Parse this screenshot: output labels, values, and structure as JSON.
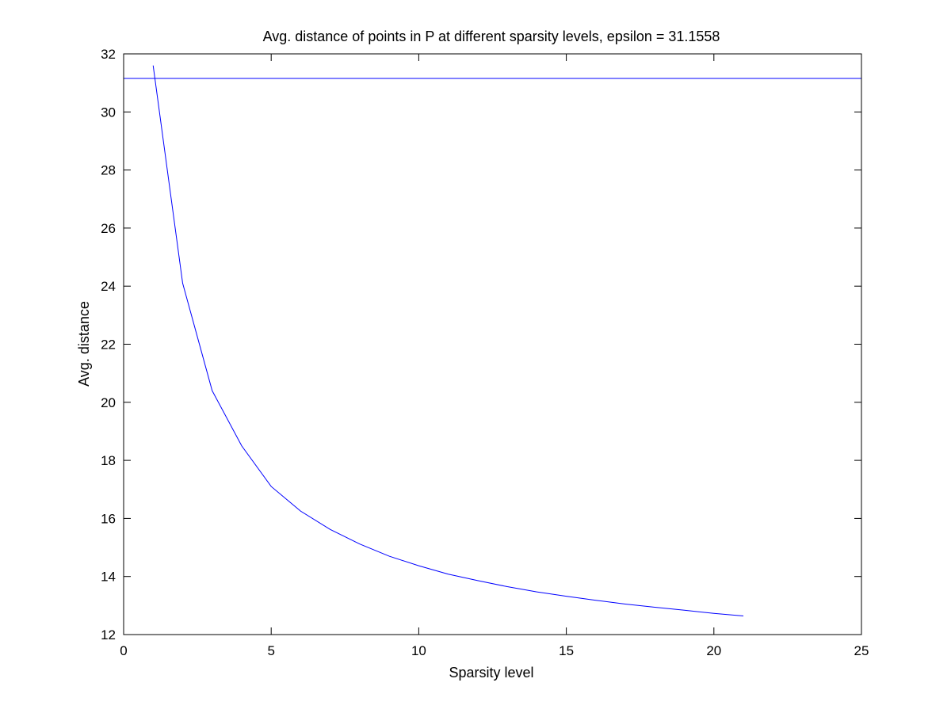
{
  "chart_data": {
    "type": "line",
    "title": "Avg. distance of points in P at different sparsity levels, epsilon = 31.1558",
    "xlabel": "Sparsity level",
    "ylabel": "Avg. distance",
    "xlim": [
      0,
      25
    ],
    "ylim": [
      12,
      32
    ],
    "xticks": [
      0,
      5,
      10,
      15,
      20,
      25
    ],
    "yticks": [
      12,
      14,
      16,
      18,
      20,
      22,
      24,
      26,
      28,
      30,
      32
    ],
    "grid": false,
    "legend": "none",
    "series": [
      {
        "color": "#0000ff",
        "x": [
          1,
          2,
          3,
          4,
          5,
          6,
          7,
          8,
          9,
          10,
          11,
          12,
          13,
          14,
          15,
          16,
          17,
          18,
          19,
          20,
          21
        ],
        "values": [
          31.6,
          24.1,
          20.4,
          18.5,
          17.1,
          16.25,
          15.62,
          15.12,
          14.7,
          14.37,
          14.08,
          13.86,
          13.65,
          13.47,
          13.32,
          13.18,
          13.05,
          12.94,
          12.84,
          12.73,
          12.64
        ]
      }
    ],
    "hlines": [
      {
        "y": 31.1558,
        "color": "#0000ff"
      }
    ]
  }
}
